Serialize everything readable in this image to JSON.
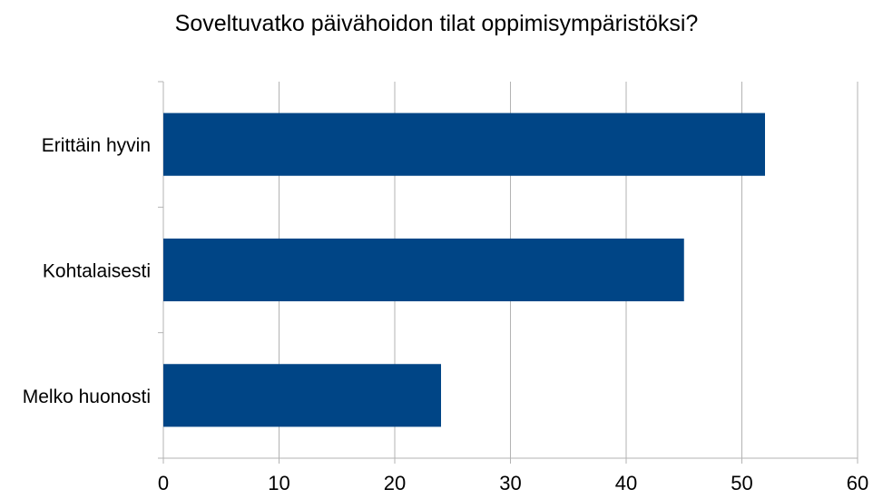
{
  "chart_data": {
    "type": "bar",
    "orientation": "horizontal",
    "title": "Soveltuvatko päivähoidon tilat oppimisympäristöksi?",
    "xlabel": "",
    "ylabel": "",
    "categories": [
      "Erittäin hyvin",
      "Kohtalaisesti",
      "Melko huonosti"
    ],
    "values": [
      52,
      45,
      24
    ],
    "xlim": [
      0,
      60
    ],
    "xticks": [
      0,
      10,
      20,
      30,
      40,
      50,
      60
    ],
    "grid": true,
    "legend": "none",
    "bar_color": "#004586",
    "grid_color": "#b3b3b3"
  }
}
